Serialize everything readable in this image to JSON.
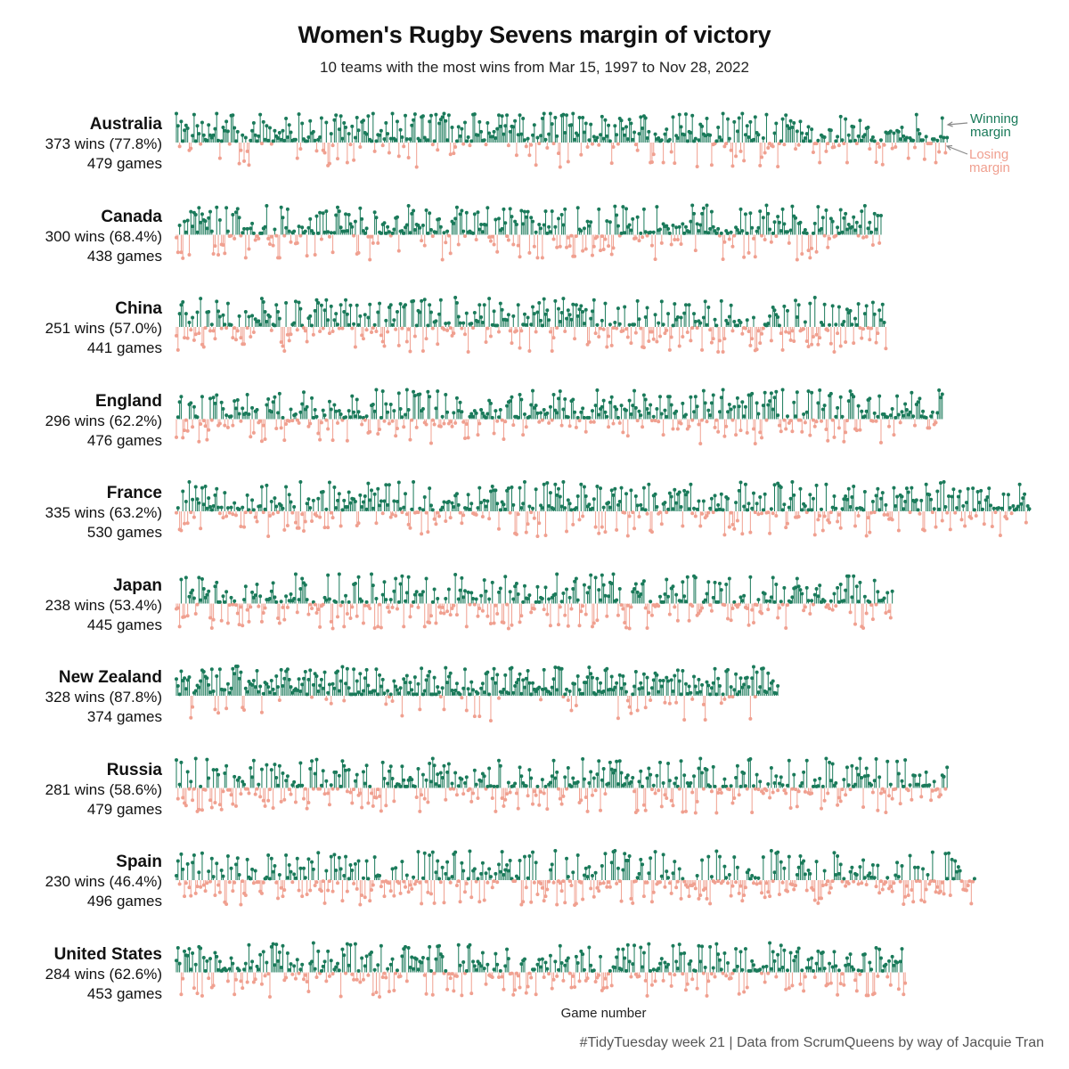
{
  "title": "Women's Rugby Sevens margin of victory",
  "subtitle": "10 teams with the most wins from Mar 15, 1997 to Nov 28, 2022",
  "caption": "#TidyTuesday week 21 | Data from ScrumQueens by way of Jacquie Tran",
  "annotations": {
    "winning": "Winning\nmargin",
    "losing": "Losing\nmargin"
  },
  "colors": {
    "win": "#1a7a5a",
    "loss": "#f0a090",
    "annotation_arrow": "#888888"
  },
  "chart_data": {
    "type": "lollipop",
    "xlabel": "Game number",
    "ylabel": "",
    "x_unit": "game number",
    "y_unit": "points margin (estimated)",
    "facets": [
      {
        "team": "Australia",
        "wins_label": "373 wins (77.8%)",
        "games_label": "479 games",
        "wins": 373,
        "games": 479
      },
      {
        "team": "Canada",
        "wins_label": "300 wins (68.4%)",
        "games_label": "438 games",
        "wins": 300,
        "games": 438
      },
      {
        "team": "China",
        "wins_label": "251 wins (57.0%)",
        "games_label": "441 games",
        "wins": 251,
        "games": 441
      },
      {
        "team": "England",
        "wins_label": "296 wins (62.2%)",
        "games_label": "476 games",
        "wins": 296,
        "games": 476
      },
      {
        "team": "France",
        "wins_label": "335 wins (63.2%)",
        "games_label": "530 games",
        "wins": 335,
        "games": 530
      },
      {
        "team": "Japan",
        "wins_label": "238 wins (53.4%)",
        "games_label": "445 games",
        "wins": 238,
        "games": 445
      },
      {
        "team": "New Zealand",
        "wins_label": "328 wins (87.8%)",
        "games_label": "374 games",
        "wins": 328,
        "games": 374
      },
      {
        "team": "Russia",
        "wins_label": "281 wins (58.6%)",
        "games_label": "479 games",
        "wins": 281,
        "games": 479
      },
      {
        "team": "Spain",
        "wins_label": "230 wins (46.4%)",
        "games_label": "496 games",
        "wins": 230,
        "games": 496
      },
      {
        "team": "United States",
        "wins_label": "284 wins (62.6%)",
        "games_label": "453 games",
        "wins": 284,
        "games": 453
      }
    ]
  }
}
